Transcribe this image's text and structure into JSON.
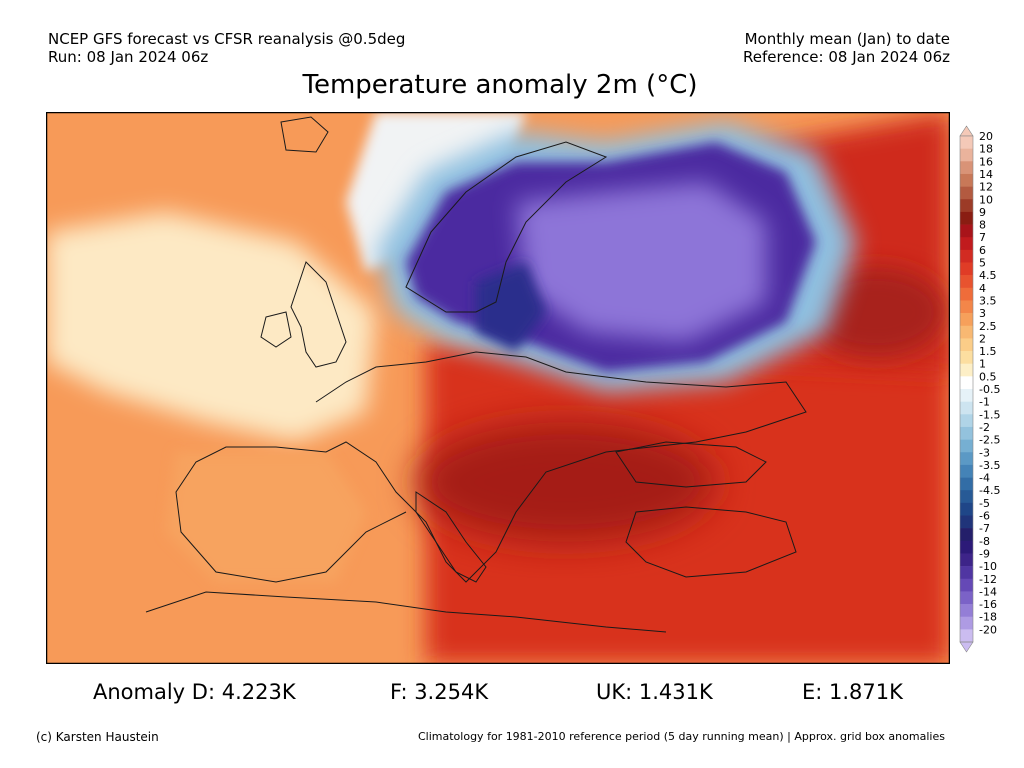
{
  "header": {
    "left_line1": "NCEP GFS forecast vs CFSR reanalysis @0.5deg",
    "left_line2": "Run: 08 Jan 2024 06z",
    "right_line1": "Monthly mean (Jan) to date",
    "right_line2": "Reference: 08 Jan 2024 06z"
  },
  "title": "Temperature anomaly 2m (°C)",
  "colorbar": {
    "labels": [
      "20",
      "18",
      "16",
      "14",
      "12",
      "10",
      "9",
      "8",
      "7",
      "6",
      "5",
      "4.5",
      "4",
      "3.5",
      "3",
      "2.5",
      "2",
      "1.5",
      "1",
      "0.5",
      "-0.5",
      "-1",
      "-1.5",
      "-2",
      "-2.5",
      "-3",
      "-3.5",
      "-4",
      "-4.5",
      "-5",
      "-6",
      "-7",
      "-8",
      "-9",
      "-10",
      "-12",
      "-14",
      "-16",
      "-18",
      "-20"
    ],
    "colors": [
      "#f4c9b8",
      "#eab39c",
      "#d99377",
      "#c87858",
      "#b35a40",
      "#9c3b27",
      "#8a1d12",
      "#a8141a",
      "#c11b1e",
      "#d22b22",
      "#e03c26",
      "#e8532f",
      "#ef6c3a",
      "#f38649",
      "#f6a05b",
      "#f8b872",
      "#fbcd88",
      "#fcdea0",
      "#fdefc7",
      "#ffffff",
      "#e6f2f8",
      "#cde4f0",
      "#b0d4e7",
      "#93c2dd",
      "#76afd2",
      "#5b99c5",
      "#4483b7",
      "#326da6",
      "#275a96",
      "#1f4688",
      "#20347a",
      "#241f6a",
      "#2c1a78",
      "#3d2489",
      "#5036a2",
      "#6549b6",
      "#7b62c7",
      "#947ed6",
      "#ae9be3",
      "#cbbcf0"
    ]
  },
  "map": {
    "colors": {
      "ocean": "#fbd9a4",
      "warm_land": "#f58b4c",
      "hot": "#d8321f",
      "very_hot": "#a51a14",
      "mild": "#fde9c4",
      "neutral": "#f1f3f4",
      "cold": "#5a8fcb",
      "very_cold": "#4b2ca0",
      "extreme_cold": "#8d74d8"
    }
  },
  "anomalies": {
    "d": "Anomaly D: 4.223K",
    "f": "F: 3.254K",
    "uk": "UK: 1.431K",
    "e": "E: 1.871K"
  },
  "footer": {
    "copyright": "(c) Karsten Haustein",
    "note": "Climatology for 1981-2010 reference period (5 day running mean) | Approx. grid box anomalies"
  }
}
